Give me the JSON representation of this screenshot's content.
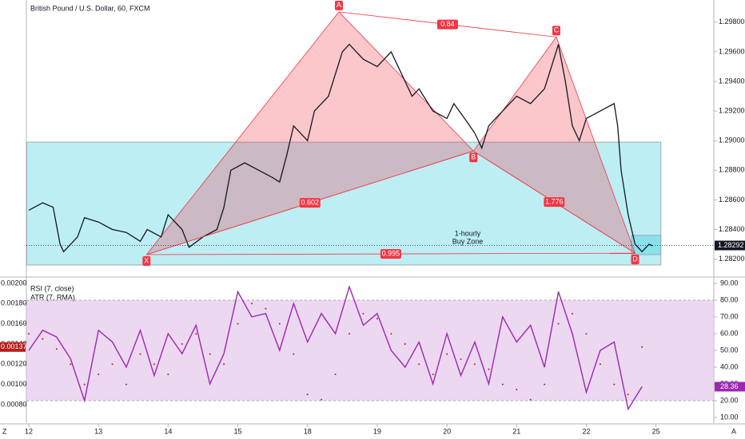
{
  "chart_data": [
    {
      "type": "line",
      "title": "British Pound / U.S. Dollar, 60, FXCM",
      "color": "#131722",
      "x": [
        0,
        0.2,
        0.35,
        0.45,
        0.5,
        0.7,
        0.8,
        1.0,
        1.2,
        1.4,
        1.6,
        1.7,
        1.9,
        2.0,
        2.2,
        2.3,
        2.5,
        2.7,
        2.8,
        2.9,
        3.1,
        3.3,
        3.5,
        3.6,
        3.7,
        3.8,
        4.0,
        4.1,
        4.3,
        4.4,
        4.5,
        4.6,
        4.8,
        5.0,
        5.2,
        5.35,
        5.5,
        5.6,
        5.8,
        6.0,
        6.1,
        6.3,
        6.4,
        6.5,
        6.6,
        6.8,
        7.0,
        7.2,
        7.4,
        7.5,
        7.6,
        7.7,
        7.8,
        7.9,
        8.0,
        8.2,
        8.4,
        8.45,
        8.5,
        8.6,
        8.7,
        8.8,
        8.9,
        8.95
      ],
      "values": [
        1.2853,
        1.2858,
        1.2855,
        1.283,
        1.2825,
        1.2835,
        1.2848,
        1.2845,
        1.284,
        1.2838,
        1.2832,
        1.284,
        1.2835,
        1.285,
        1.284,
        1.2828,
        1.2835,
        1.284,
        1.2855,
        1.288,
        1.2885,
        1.288,
        1.2875,
        1.2872,
        1.289,
        1.291,
        1.29,
        1.292,
        1.293,
        1.2945,
        1.296,
        1.2965,
        1.2955,
        1.295,
        1.296,
        1.2945,
        1.293,
        1.2935,
        1.292,
        1.2915,
        1.2925,
        1.2912,
        1.2905,
        1.2895,
        1.291,
        1.292,
        1.293,
        1.2925,
        1.2935,
        1.295,
        1.2965,
        1.294,
        1.291,
        1.29,
        1.2915,
        1.292,
        1.2925,
        1.291,
        1.288,
        1.285,
        1.283,
        1.2825,
        1.283,
        1.2829
      ],
      "xlim": [
        -0.034,
        9.83
      ],
      "ylim": [
        1.2809,
        1.2995
      ],
      "xticks": [
        {
          "value": 0,
          "label": "12"
        },
        {
          "value": 1,
          "label": "13"
        },
        {
          "value": 2,
          "label": "14"
        },
        {
          "value": 3,
          "label": "15"
        },
        {
          "value": 4,
          "label": "18"
        },
        {
          "value": 5,
          "label": "19"
        },
        {
          "value": 6,
          "label": "20"
        },
        {
          "value": 7,
          "label": "21"
        },
        {
          "value": 8,
          "label": "22"
        },
        {
          "value": 9,
          "label": "25"
        }
      ],
      "yticks": [
        {
          "value": 1.282,
          "label": "1.28200"
        },
        {
          "value": 1.284,
          "label": "1.28400"
        },
        {
          "value": 1.286,
          "label": "1.28600"
        },
        {
          "value": 1.288,
          "label": "1.28800"
        },
        {
          "value": 1.29,
          "label": "1.29000"
        },
        {
          "value": 1.292,
          "label": "1.29200"
        },
        {
          "value": 1.294,
          "label": "1.29400"
        },
        {
          "value": 1.296,
          "label": "1.29600"
        },
        {
          "value": 1.298,
          "label": "1.29800"
        }
      ],
      "last_price": 1.28292,
      "zones": [
        {
          "xlim": [
            -0.03,
            9.07
          ],
          "ylim": [
            1.2816,
            1.2899
          ],
          "color": "#b2ebf2"
        },
        {
          "xlim": [
            8.65,
            9.07
          ],
          "ylim": [
            1.2823,
            1.2836
          ],
          "color": "#80deea"
        }
      ],
      "zone_label": [
        "1-hourly",
        "Buy Zone"
      ],
      "pattern": {
        "color": "#f23645",
        "points": [
          {
            "label": "X",
            "x": 1.69,
            "y": 1.2823
          },
          {
            "label": "A",
            "x": 4.45,
            "y": 1.2987
          },
          {
            "label": "B",
            "x": 6.38,
            "y": 1.2893
          },
          {
            "label": "C",
            "x": 7.57,
            "y": 1.297
          },
          {
            "label": "D",
            "x": 8.7,
            "y": 1.2824
          }
        ],
        "ratios": [
          "0.84",
          "0.602",
          "1.776",
          "0.995"
        ]
      }
    },
    {
      "type": "line",
      "x": [
        0,
        0.2,
        0.4,
        0.6,
        0.8,
        1.0,
        1.2,
        1.4,
        1.6,
        1.8,
        2.0,
        2.2,
        2.4,
        2.6,
        2.8,
        3.0,
        3.2,
        3.4,
        3.6,
        3.8,
        4.0,
        4.2,
        4.4,
        4.6,
        4.8,
        5.0,
        5.2,
        5.4,
        5.6,
        5.8,
        6.0,
        6.2,
        6.4,
        6.6,
        6.8,
        7.0,
        7.2,
        7.4,
        7.6,
        7.8,
        8.0,
        8.2,
        8.4,
        8.6,
        8.8
      ],
      "xlim": [
        -0.034,
        9.83
      ],
      "ylim": [
        0.000618,
        0.002055
      ],
      "y2lim": [
        6.67,
        93.33
      ],
      "yticks": [
        {
          "value": 0.0008,
          "label": "0.00080"
        },
        {
          "value": 0.001,
          "label": "0.00100"
        },
        {
          "value": 0.0012,
          "label": "0.00120"
        },
        {
          "value": 0.0014,
          "label": "0.00140"
        },
        {
          "value": 0.0016,
          "label": "0.00160"
        },
        {
          "value": 0.0018,
          "label": "0.00180"
        },
        {
          "value": 0.002,
          "label": "0.00200"
        }
      ],
      "y2ticks": [
        {
          "value": 10,
          "label": "10.00"
        },
        {
          "value": 20,
          "label": "20.00"
        },
        {
          "value": 30,
          "label": "30.00"
        },
        {
          "value": 40,
          "label": "40.00"
        },
        {
          "value": 50,
          "label": "50.00"
        },
        {
          "value": 60,
          "label": "60.00"
        },
        {
          "value": 70,
          "label": "70.00"
        },
        {
          "value": 80,
          "label": "80.00"
        },
        {
          "value": 90,
          "label": "90.00"
        }
      ],
      "band": [
        20,
        80
      ],
      "series": [
        {
          "name": "RSI (7, close)",
          "axis": "y2",
          "color": "#9c27b0",
          "values": [
            50,
            62,
            58,
            45,
            20,
            62,
            55,
            40,
            62,
            35,
            60,
            48,
            65,
            30,
            48,
            85,
            70,
            72,
            50,
            78,
            55,
            72,
            60,
            88,
            65,
            72,
            50,
            40,
            55,
            30,
            60,
            35,
            55,
            30,
            70,
            55,
            65,
            40,
            85,
            60,
            25,
            50,
            55,
            15,
            28.36
          ],
          "last_label": "28.36"
        },
        {
          "name": "ATR (7, RMA)",
          "color": "#b71c1c",
          "values": [
            0.0015,
            0.00145,
            0.00135,
            0.0012,
            0.001,
            0.0011,
            0.0012,
            0.001,
            0.0013,
            0.0012,
            0.0011,
            0.0014,
            0.0015,
            0.0013,
            0.0012,
            0.0016,
            0.0018,
            0.00175,
            0.0016,
            0.0013,
            0.0009,
            0.00085,
            0.0011,
            0.0015,
            0.0017,
            0.00165,
            0.0015,
            0.0014,
            0.0012,
            0.0011,
            0.0013,
            0.00125,
            0.0012,
            0.00115,
            0.001,
            0.00095,
            0.00085,
            0.001,
            0.0016,
            0.0017,
            0.0015,
            0.0012,
            0.001,
            0.0009,
            0.00137
          ],
          "last_label": "0.00137"
        }
      ],
      "corner_labels": [
        "Z",
        "A"
      ]
    }
  ]
}
